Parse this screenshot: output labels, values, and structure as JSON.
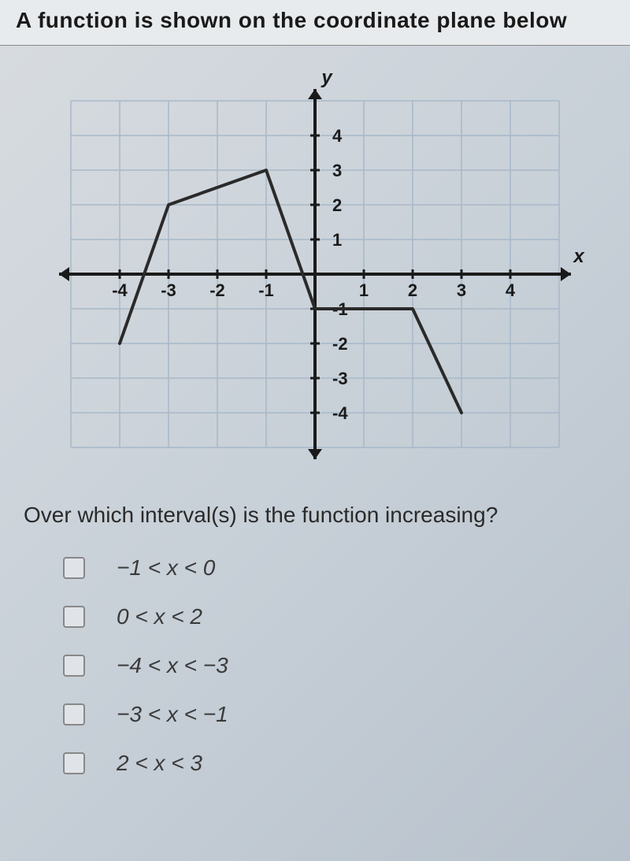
{
  "title": "A function is shown on the coordinate plane below",
  "graph": {
    "xlim": [
      -5,
      5
    ],
    "ylim": [
      -5,
      5
    ],
    "xticks": [
      -4,
      -3,
      -2,
      -1,
      1,
      2,
      3,
      4
    ],
    "yticks": [
      -4,
      -3,
      -2,
      -1,
      1,
      2,
      3,
      4
    ],
    "xlabel": "x",
    "ylabel": "y",
    "grid_color": "#a8b8c8",
    "axis_color": "#1a1a1a",
    "axis_width": 4,
    "function_color": "#2a2a2a",
    "function_width": 4,
    "tick_fontsize": 22,
    "label_fontsize": 24,
    "function_points": [
      {
        "x": -4,
        "y": -2
      },
      {
        "x": -3,
        "y": 2
      },
      {
        "x": -1,
        "y": 3
      },
      {
        "x": 0,
        "y": -1
      },
      {
        "x": 2,
        "y": -1
      },
      {
        "x": 3,
        "y": -4
      }
    ]
  },
  "question": "Over which interval(s) is the function increasing?",
  "answers": [
    {
      "label": "−1 < x < 0"
    },
    {
      "label": "0 < x < 2"
    },
    {
      "label": "−4 < x < −3"
    },
    {
      "label": "−3 < x < −1"
    },
    {
      "label": "2 < x < 3"
    }
  ]
}
